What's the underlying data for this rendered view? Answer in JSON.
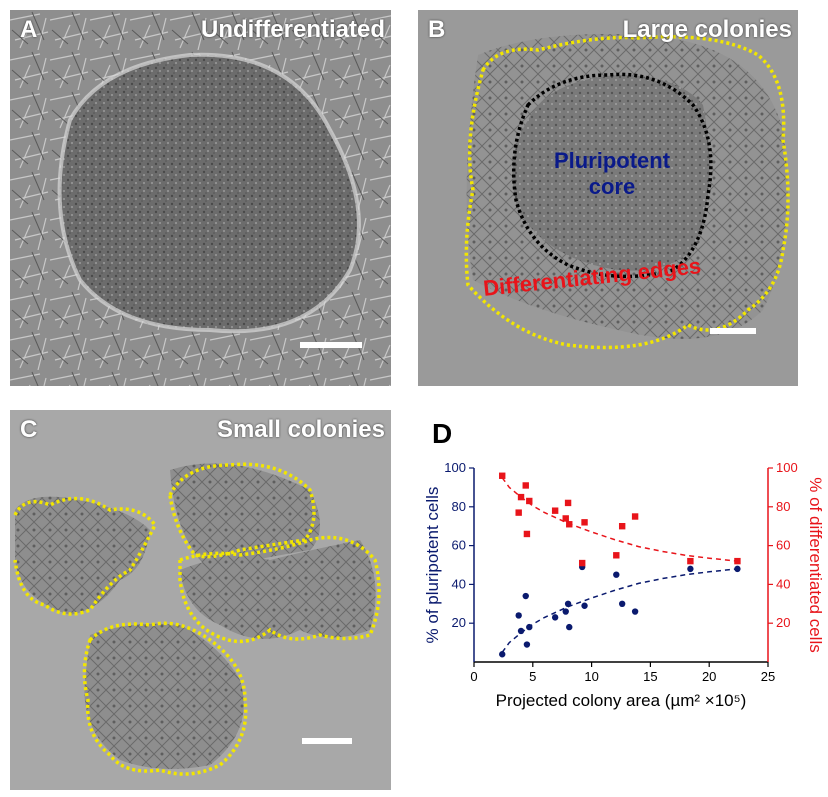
{
  "panels": {
    "a": {
      "letter": "A",
      "title": "Undifferentiated"
    },
    "b": {
      "letter": "B",
      "title": "Large colonies",
      "core_label_line1": "Pluripotent",
      "core_label_line2": "core",
      "edge_label": "Differentiating edges"
    },
    "c": {
      "letter": "C",
      "title": "Small colonies"
    },
    "d": {
      "letter": "D"
    }
  },
  "colors": {
    "pluripotent": "#0a1a6e",
    "differentiated": "#e8141a",
    "outline_yellow": "#f2e600",
    "core_outline": "#000000",
    "edge_text": "#e8141a",
    "core_text": "#0a1a8a"
  },
  "chart_data": {
    "type": "scatter",
    "xlabel": "Projected colony area (µm² ×10⁵)",
    "ylabel_left": "% of pluripotent cells",
    "ylabel_right": "% of differentiated cells",
    "xlim": [
      0,
      25
    ],
    "ylim_left": [
      0,
      100
    ],
    "ylim_right": [
      0,
      100
    ],
    "xticks": [
      0,
      5,
      10,
      15,
      20,
      25
    ],
    "yticks_left": [
      20,
      40,
      60,
      80,
      100
    ],
    "yticks_right": [
      20,
      40,
      60,
      80,
      100
    ],
    "series": [
      {
        "name": "% of pluripotent cells",
        "axis": "left",
        "marker": "circle",
        "points": [
          [
            2.4,
            4
          ],
          [
            3.8,
            24
          ],
          [
            4.0,
            16
          ],
          [
            4.4,
            34
          ],
          [
            4.5,
            9
          ],
          [
            4.7,
            18
          ],
          [
            6.9,
            23
          ],
          [
            7.8,
            26
          ],
          [
            8.0,
            30
          ],
          [
            8.1,
            18
          ],
          [
            9.2,
            49
          ],
          [
            9.4,
            29
          ],
          [
            12.1,
            45
          ],
          [
            12.6,
            30
          ],
          [
            13.7,
            26
          ],
          [
            18.4,
            48
          ],
          [
            22.4,
            48
          ]
        ],
        "fit": [
          [
            2.4,
            5
          ],
          [
            3,
            10
          ],
          [
            4,
            15
          ],
          [
            5,
            19.5
          ],
          [
            6,
            23
          ],
          [
            8,
            28.5
          ],
          [
            10,
            33
          ],
          [
            12,
            37
          ],
          [
            14,
            40.5
          ],
          [
            16,
            43
          ],
          [
            18,
            45
          ],
          [
            20,
            46.5
          ],
          [
            22.4,
            48
          ]
        ]
      },
      {
        "name": "% of differentiated cells",
        "axis": "right",
        "marker": "square",
        "points": [
          [
            2.4,
            96
          ],
          [
            3.8,
            77
          ],
          [
            4.0,
            85
          ],
          [
            4.4,
            91
          ],
          [
            4.5,
            66
          ],
          [
            4.7,
            83
          ],
          [
            6.9,
            78
          ],
          [
            7.8,
            74
          ],
          [
            8.0,
            82
          ],
          [
            8.1,
            71
          ],
          [
            9.2,
            51
          ],
          [
            9.4,
            72
          ],
          [
            12.1,
            55
          ],
          [
            12.6,
            70
          ],
          [
            13.7,
            75
          ],
          [
            18.4,
            52
          ],
          [
            22.4,
            52
          ]
        ],
        "fit": [
          [
            2.4,
            95
          ],
          [
            3,
            90
          ],
          [
            4,
            85
          ],
          [
            5,
            80.5
          ],
          [
            6,
            77
          ],
          [
            8,
            71.5
          ],
          [
            10,
            67
          ],
          [
            12,
            63
          ],
          [
            14,
            59.5
          ],
          [
            16,
            57
          ],
          [
            18,
            55
          ],
          [
            20,
            53.5
          ],
          [
            22.4,
            52
          ]
        ]
      }
    ]
  }
}
